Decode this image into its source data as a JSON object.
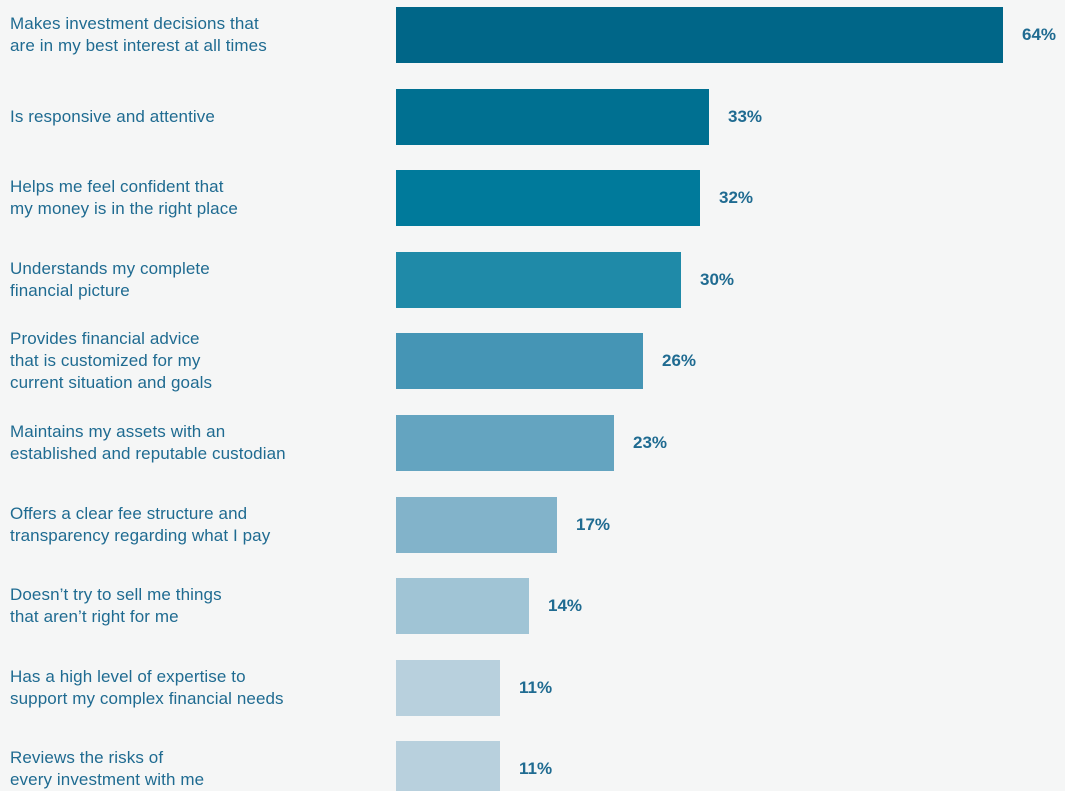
{
  "theme": {
    "label_color": "#1f6b91",
    "value_color": "#1f6b91",
    "bar_colors": [
      "#006688",
      "#007091",
      "#007a9b",
      "#1f8aa8",
      "#4595b5",
      "#64a4c0",
      "#82b3ca",
      "#a0c4d5",
      "#b8d0dd",
      "#b8d0dd"
    ]
  },
  "chart_data": {
    "type": "bar",
    "orientation": "horizontal",
    "categories": [
      "Makes investment decisions that\nare in my best interest at all times",
      "Is responsive and attentive",
      "Helps me feel confident that\nmy money is in the right place",
      "Understands my complete\nfinancial picture",
      "Provides financial advice\nthat is customized for my\ncurrent situation and goals",
      "Maintains my assets with an\nestablished and reputable custodian",
      "Offers a clear fee structure and\ntransparency regarding what I pay",
      "Doesn’t try to sell me things\nthat aren’t right for me",
      "Has a high level of expertise to\nsupport my complex financial needs",
      "Reviews the risks of\nevery investment with me"
    ],
    "values": [
      64,
      33,
      32,
      30,
      26,
      23,
      17,
      14,
      11,
      11
    ],
    "value_labels": [
      "64%",
      "33%",
      "32%",
      "30%",
      "26%",
      "23%",
      "17%",
      "14%",
      "11%",
      "11%"
    ],
    "unit": "%",
    "xlim": [
      0,
      64
    ],
    "grid": false,
    "legend": "none"
  }
}
